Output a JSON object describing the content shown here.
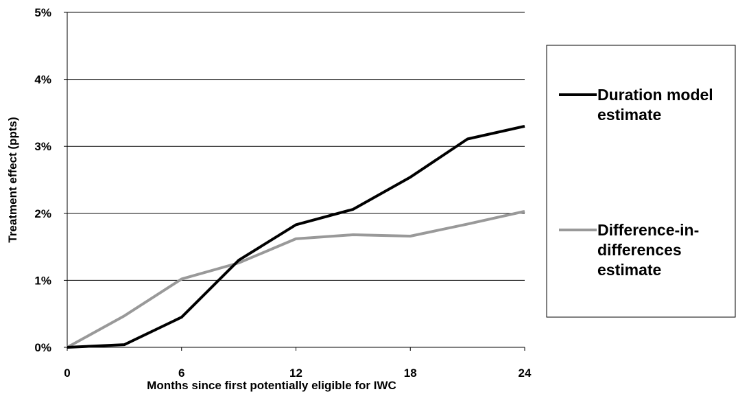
{
  "chart_data": {
    "type": "line",
    "x": [
      0,
      3,
      6,
      9,
      12,
      15,
      18,
      21,
      24
    ],
    "xticks": [
      "0",
      "6",
      "12",
      "18",
      "24"
    ],
    "xtick_values": [
      0,
      6,
      12,
      18,
      24
    ],
    "yticks": [
      "0%",
      "1%",
      "2%",
      "3%",
      "4%",
      "5%"
    ],
    "ytick_values": [
      0,
      1,
      2,
      3,
      4,
      5
    ],
    "xlim": [
      0,
      24
    ],
    "ylim": [
      0,
      5
    ],
    "xlabel": "Months since first potentially eligible for IWC",
    "ylabel": "Treatment effect (ppts)",
    "grid": "horizontal",
    "legend_position": "right",
    "series": [
      {
        "name": "Duration model estimate",
        "legend_lines": [
          "Duration model",
          "estimate"
        ],
        "color": "#000000",
        "values": [
          0,
          0.04,
          0.45,
          1.3,
          1.83,
          2.06,
          2.54,
          3.11,
          3.3
        ]
      },
      {
        "name": "Difference-in-differences estimate",
        "legend_lines": [
          "Difference-in-",
          "differences",
          "estimate"
        ],
        "color": "#999999",
        "values": [
          0,
          0.47,
          1.02,
          1.26,
          1.62,
          1.68,
          1.66,
          1.84,
          2.03
        ]
      }
    ]
  }
}
